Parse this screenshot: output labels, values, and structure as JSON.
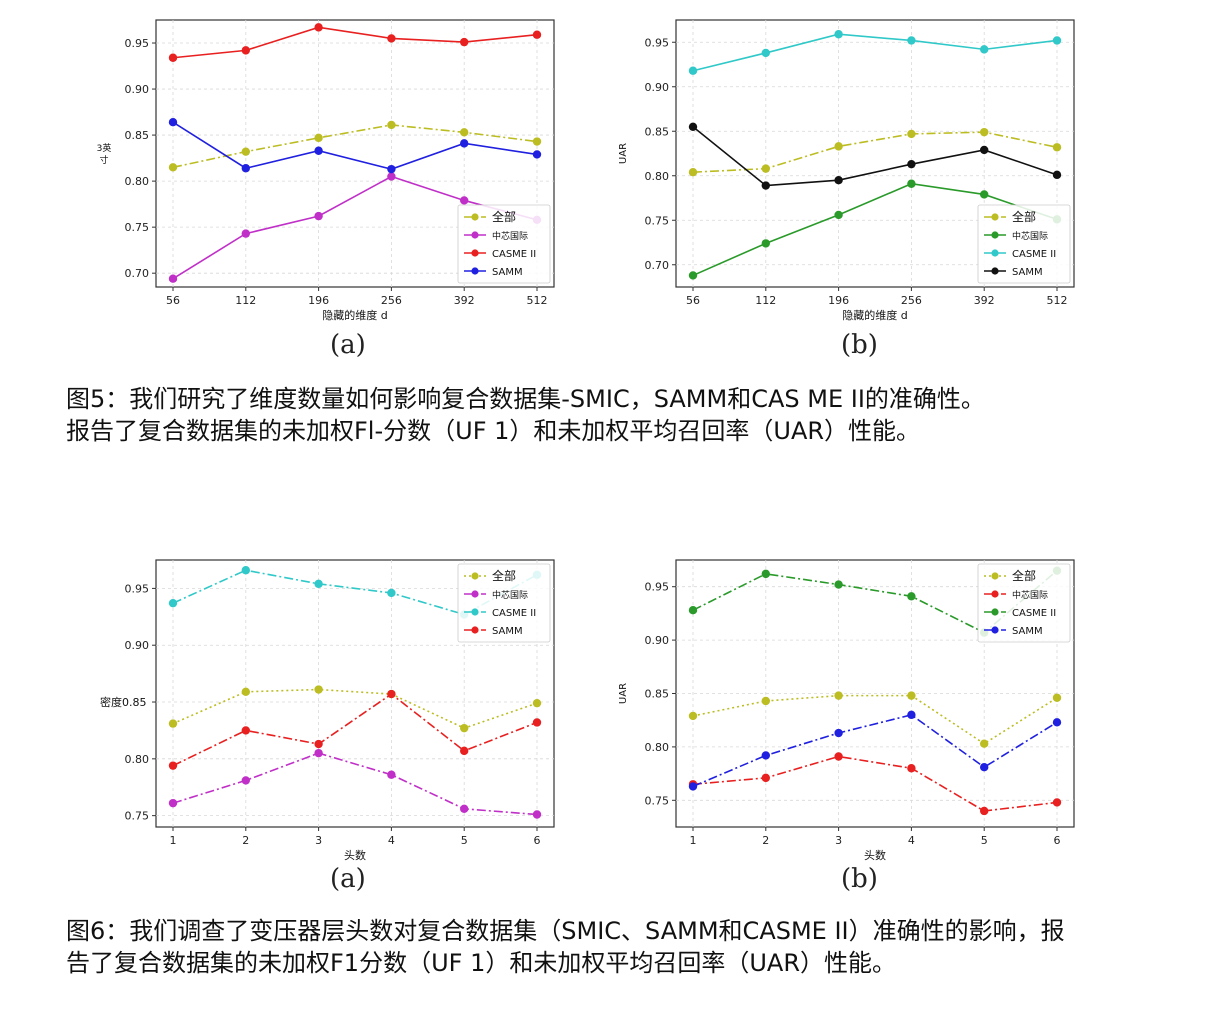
{
  "figure5": {
    "caption_line1": "图5：我们研究了维度数量如何影响复合数据集-SMIC，SAMM和CAS ME II的准确性。",
    "caption_line2": "报告了复合数据集的未加权Fl-分数（UF 1）和未加权平均召回率（UAR）性能。",
    "label_a": "(a)",
    "label_b": "(b)"
  },
  "figure6": {
    "caption_line1": "图6：我们调查了变压器层头数对复合数据集（SMIC、SAMM和CASME II）准确性的影响，报",
    "caption_line2": "告了复合数据集的未加权F1分数（UF 1）和未加权平均召回率（UAR）性能。",
    "label_a": "(a)",
    "label_b": "(b)"
  },
  "chart_data": [
    {
      "type": "line",
      "categories": [
        "56",
        "112",
        "196",
        "256",
        "392",
        "512"
      ],
      "xlabel": "隐藏的维度 d",
      "ylabel": "3英寸",
      "ylim": [
        0.685,
        0.975
      ],
      "yticks": [
        "0.70",
        "0.75",
        "0.80",
        "0.85",
        "0.90",
        "0.95"
      ],
      "grid": true,
      "legend": "lower-right",
      "series": [
        {
          "name": "全部",
          "values": [
            0.815,
            0.832,
            0.847,
            0.861,
            0.853,
            0.843
          ],
          "color": "#bcbd22",
          "style": "dashdot"
        },
        {
          "name": "中芯国际",
          "values": [
            0.694,
            0.743,
            0.762,
            0.805,
            0.779,
            0.758
          ],
          "color": "#c030c8",
          "style": "solid"
        },
        {
          "name": "CASME II",
          "values": [
            0.934,
            0.942,
            0.967,
            0.955,
            0.951,
            0.959
          ],
          "color": "#e82020",
          "style": "solid"
        },
        {
          "name": "SAMM",
          "values": [
            0.864,
            0.814,
            0.833,
            0.813,
            0.841,
            0.829
          ],
          "color": "#2020e0",
          "style": "solid"
        }
      ]
    },
    {
      "type": "line",
      "categories": [
        "56",
        "112",
        "196",
        "256",
        "392",
        "512"
      ],
      "xlabel": "隐藏的维度 d",
      "ylabel": "UAR",
      "ylim": [
        0.675,
        0.975
      ],
      "yticks": [
        "0.70",
        "0.75",
        "0.80",
        "0.85",
        "0.90",
        "0.95"
      ],
      "grid": true,
      "legend": "lower-right",
      "series": [
        {
          "name": "全部",
          "values": [
            0.804,
            0.808,
            0.833,
            0.847,
            0.849,
            0.832
          ],
          "color": "#bcbd22",
          "style": "dashdot"
        },
        {
          "name": "中芯国际",
          "values": [
            0.688,
            0.724,
            0.756,
            0.791,
            0.779,
            0.751
          ],
          "color": "#2a9a2a",
          "style": "solid"
        },
        {
          "name": "CASME II",
          "values": [
            0.918,
            0.938,
            0.959,
            0.952,
            0.942,
            0.952
          ],
          "color": "#30c8c8",
          "style": "solid"
        },
        {
          "name": "SAMM",
          "values": [
            0.855,
            0.789,
            0.795,
            0.813,
            0.829,
            0.801
          ],
          "color": "#111111",
          "style": "solid"
        }
      ]
    },
    {
      "type": "line",
      "categories": [
        "1",
        "2",
        "3",
        "4",
        "5",
        "6"
      ],
      "xlabel": "头数",
      "ylabel": "密度0.85",
      "ylim": [
        0.74,
        0.975
      ],
      "yticks": [
        "0.75",
        "0.80",
        "",
        "0.90",
        "0.95"
      ],
      "ytick_values": [
        0.75,
        0.8,
        0.85,
        0.9,
        0.95
      ],
      "grid": true,
      "legend": "upper-right",
      "series": [
        {
          "name": "全部",
          "values": [
            0.831,
            0.859,
            0.861,
            0.857,
            0.827,
            0.849
          ],
          "color": "#bcbd22",
          "style": "dotted"
        },
        {
          "name": "中芯国际",
          "values": [
            0.761,
            0.781,
            0.805,
            0.786,
            0.756,
            0.751
          ],
          "color": "#c030c8",
          "style": "dashdot"
        },
        {
          "name": "CASME II",
          "values": [
            0.937,
            0.966,
            0.954,
            0.946,
            0.927,
            0.962
          ],
          "color": "#30c8c8",
          "style": "dashdot"
        },
        {
          "name": "SAMM",
          "values": [
            0.794,
            0.825,
            0.813,
            0.857,
            0.807,
            0.832
          ],
          "color": "#e82020",
          "style": "dashdot"
        }
      ]
    },
    {
      "type": "line",
      "categories": [
        "1",
        "2",
        "3",
        "4",
        "5",
        "6"
      ],
      "xlabel": "头数",
      "ylabel": "UAR",
      "ylim": [
        0.725,
        0.975
      ],
      "yticks": [
        "0.75",
        "0.80",
        "0.85",
        "0.90",
        "0.95"
      ],
      "grid": true,
      "legend": "upper-right",
      "series": [
        {
          "name": "全部",
          "values": [
            0.829,
            0.843,
            0.848,
            0.848,
            0.803,
            0.846
          ],
          "color": "#bcbd22",
          "style": "dotted"
        },
        {
          "name": "中芯国际",
          "values": [
            0.765,
            0.771,
            0.791,
            0.78,
            0.74,
            0.748
          ],
          "color": "#e82020",
          "style": "dashdot"
        },
        {
          "name": "CASME II",
          "values": [
            0.928,
            0.962,
            0.952,
            0.941,
            0.907,
            0.965
          ],
          "color": "#2a9a2a",
          "style": "dashdot"
        },
        {
          "name": "SAMM",
          "values": [
            0.763,
            0.792,
            0.813,
            0.83,
            0.781,
            0.823
          ],
          "color": "#2020e0",
          "style": "dashdot"
        }
      ]
    }
  ]
}
